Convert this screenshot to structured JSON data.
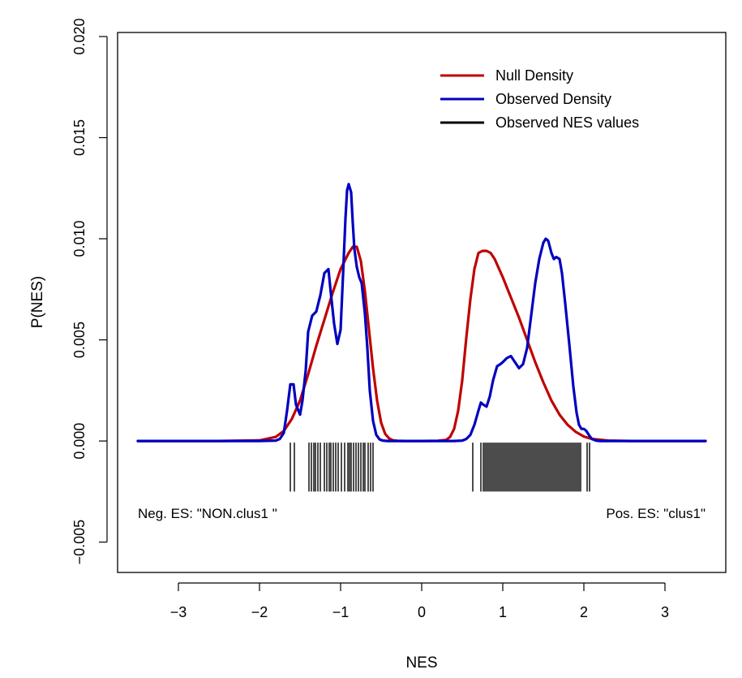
{
  "chart_data": {
    "type": "line",
    "title": "",
    "xlabel": "NES",
    "ylabel": "P(NES)",
    "xlim": [
      -3.75,
      3.75
    ],
    "ylim": [
      -0.0065,
      0.0202
    ],
    "x_ticks": [
      -3,
      -2,
      -1,
      0,
      1,
      2,
      3
    ],
    "x_tick_labels": [
      "−3",
      "−2",
      "−1",
      "0",
      "1",
      "2",
      "3"
    ],
    "y_ticks": [
      -0.005,
      0.0,
      0.005,
      0.01,
      0.015,
      0.02
    ],
    "y_tick_labels": [
      "−0.005",
      "0.000",
      "0.005",
      "0.010",
      "0.015",
      "0.020"
    ],
    "grid": false,
    "legend_position": "top-right",
    "legend": [
      {
        "label": "Null Density",
        "color": "#c00000"
      },
      {
        "label": "Observed Density",
        "color": "#0000c0"
      },
      {
        "label": "Observed NES values",
        "color": "#000000"
      }
    ],
    "series": [
      {
        "name": "Null Density",
        "color": "#c00000",
        "x": [
          -3.5,
          -2.5,
          -2.0,
          -1.8,
          -1.7,
          -1.6,
          -1.5,
          -1.4,
          -1.3,
          -1.2,
          -1.1,
          -1.0,
          -0.9,
          -0.85,
          -0.8,
          -0.75,
          -0.7,
          -0.65,
          -0.6,
          -0.55,
          -0.5,
          -0.45,
          -0.4,
          -0.35,
          -0.3,
          -0.2,
          0.0,
          0.2,
          0.3,
          0.35,
          0.4,
          0.45,
          0.5,
          0.55,
          0.6,
          0.65,
          0.7,
          0.75,
          0.8,
          0.85,
          0.9,
          1.0,
          1.1,
          1.2,
          1.3,
          1.4,
          1.5,
          1.6,
          1.7,
          1.8,
          1.9,
          2.0,
          2.1,
          2.3,
          2.6,
          3.5
        ],
        "y": [
          0.0,
          0.0,
          3e-05,
          0.0002,
          0.0005,
          0.0011,
          0.002,
          0.0033,
          0.0047,
          0.006,
          0.0073,
          0.0085,
          0.0093,
          0.0096,
          0.0096,
          0.0089,
          0.0074,
          0.0055,
          0.0036,
          0.002,
          0.0009,
          0.00035,
          0.00012,
          3e-05,
          1e-05,
          0.0,
          0.0,
          1e-05,
          5e-05,
          0.0002,
          0.0006,
          0.0015,
          0.003,
          0.0051,
          0.007,
          0.0085,
          0.0093,
          0.0094,
          0.0094,
          0.0093,
          0.009,
          0.0081,
          0.0071,
          0.0061,
          0.005,
          0.0039,
          0.0029,
          0.002,
          0.0013,
          0.0008,
          0.00045,
          0.00022,
          0.0001,
          2e-05,
          0.0,
          0.0
        ]
      },
      {
        "name": "Observed Density",
        "color": "#0000c0",
        "x": [
          -3.5,
          -2.0,
          -1.8,
          -1.75,
          -1.7,
          -1.66,
          -1.62,
          -1.58,
          -1.55,
          -1.5,
          -1.47,
          -1.43,
          -1.4,
          -1.35,
          -1.3,
          -1.25,
          -1.2,
          -1.15,
          -1.12,
          -1.08,
          -1.04,
          -1.0,
          -0.97,
          -0.94,
          -0.92,
          -0.9,
          -0.87,
          -0.85,
          -0.83,
          -0.8,
          -0.77,
          -0.74,
          -0.7,
          -0.67,
          -0.64,
          -0.6,
          -0.56,
          -0.52,
          -0.48,
          -0.42,
          -0.3,
          0.0,
          0.4,
          0.5,
          0.55,
          0.6,
          0.65,
          0.7,
          0.73,
          0.76,
          0.8,
          0.84,
          0.88,
          0.93,
          0.97,
          1.0,
          1.05,
          1.1,
          1.15,
          1.2,
          1.25,
          1.3,
          1.35,
          1.4,
          1.45,
          1.5,
          1.53,
          1.56,
          1.6,
          1.63,
          1.66,
          1.7,
          1.73,
          1.77,
          1.82,
          1.87,
          1.91,
          1.94,
          1.97,
          2.0,
          2.03,
          2.07,
          2.1,
          2.15,
          2.2,
          3.5
        ],
        "y": [
          0.0,
          0.0,
          2e-05,
          0.0001,
          0.0004,
          0.0015,
          0.0028,
          0.0028,
          0.0018,
          0.0013,
          0.002,
          0.0035,
          0.0054,
          0.0062,
          0.0064,
          0.0072,
          0.0083,
          0.0085,
          0.0073,
          0.0058,
          0.0048,
          0.0055,
          0.0082,
          0.011,
          0.0124,
          0.0127,
          0.0123,
          0.0108,
          0.0095,
          0.0086,
          0.0081,
          0.0078,
          0.0063,
          0.0046,
          0.0025,
          0.001,
          0.0003,
          8e-05,
          2e-05,
          0.0,
          0.0,
          0.0,
          0.0,
          2e-05,
          0.0001,
          0.0003,
          0.0008,
          0.0015,
          0.0019,
          0.0018,
          0.0017,
          0.0022,
          0.003,
          0.0037,
          0.0038,
          0.0039,
          0.0041,
          0.0042,
          0.0039,
          0.0036,
          0.0038,
          0.0046,
          0.0062,
          0.0078,
          0.009,
          0.0098,
          0.01,
          0.0099,
          0.0093,
          0.009,
          0.0091,
          0.009,
          0.0083,
          0.0068,
          0.0048,
          0.0027,
          0.0014,
          0.0008,
          0.0006,
          0.0006,
          0.0005,
          0.00025,
          0.0001,
          2e-05,
          0.0,
          0.0
        ]
      }
    ],
    "rug_values": [
      -1.62,
      -1.57,
      -1.39,
      -1.36,
      -1.33,
      -1.31,
      -1.28,
      -1.25,
      -1.2,
      -1.17,
      -1.14,
      -1.12,
      -1.09,
      -1.06,
      -1.03,
      -0.99,
      -0.95,
      -0.91,
      -0.89,
      -0.87,
      -0.84,
      -0.81,
      -0.78,
      -0.75,
      -0.72,
      -0.7,
      -0.66,
      -0.63,
      -0.6,
      0.63,
      0.73,
      0.76,
      0.78,
      0.8,
      0.82,
      0.84,
      0.86,
      0.88,
      0.9,
      0.92,
      0.94,
      0.96,
      0.98,
      1.0,
      1.02,
      1.04,
      1.06,
      1.08,
      1.1,
      1.12,
      1.14,
      1.16,
      1.18,
      1.2,
      1.22,
      1.24,
      1.26,
      1.28,
      1.3,
      1.32,
      1.34,
      1.36,
      1.38,
      1.4,
      1.42,
      1.44,
      1.46,
      1.48,
      1.5,
      1.52,
      1.54,
      1.56,
      1.58,
      1.6,
      1.62,
      1.64,
      1.66,
      1.68,
      1.7,
      1.72,
      1.74,
      1.76,
      1.78,
      1.8,
      1.82,
      1.84,
      1.86,
      1.88,
      1.9,
      1.92,
      1.94,
      1.96,
      2.04,
      2.07
    ],
    "rug_color": "#000000",
    "annotations": {
      "neg": "Neg. ES: \"NON.clus1 \"",
      "pos": "Pos. ES: \"clus1\""
    }
  }
}
